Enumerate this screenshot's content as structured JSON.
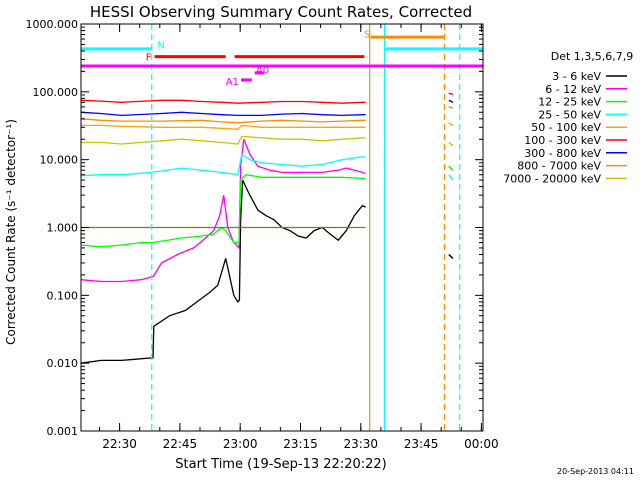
{
  "chart_data": {
    "type": "line",
    "title": "HESSI Observing Summary Count Rates, Corrected",
    "ylabel": "Corrected Count Rate (s⁻¹ detector⁻¹)",
    "xlabel": "Start Time (19-Sep-13 22:20:22)",
    "footer": "20-Sep-2013 04:11",
    "yscale": "log",
    "ylim": [
      0.001,
      1000
    ],
    "xlim": [
      0,
      100
    ],
    "x_unit": "minutes after 22:20:22",
    "y_ticks": [
      "0.001",
      "0.010",
      "0.100",
      "1.000",
      "10.000",
      "100.000",
      "1000.000"
    ],
    "x_ticks": [
      {
        "label": "22:30",
        "x": 9.6
      },
      {
        "label": "22:45",
        "x": 24.6
      },
      {
        "label": "23:00",
        "x": 39.6
      },
      {
        "label": "23:15",
        "x": 54.6
      },
      {
        "label": "23:30",
        "x": 69.6
      },
      {
        "label": "23:45",
        "x": 84.6
      },
      {
        "label": "00:00",
        "x": 99.6
      }
    ],
    "legend_title": "Det 1,3,5,6,7,9",
    "legend_position": "right",
    "series": [
      {
        "name": "3 - 6 keV",
        "color": "#000000",
        "x": [
          0,
          5,
          10,
          17.9,
          18.1,
          22,
          26,
          30,
          32,
          34,
          35,
          36,
          38,
          39,
          39.4,
          39.7,
          40.2,
          42,
          44,
          46,
          48,
          50,
          52,
          54,
          56,
          58,
          60,
          62,
          64,
          66,
          68,
          70,
          70.8
        ],
        "y": [
          0.01,
          0.011,
          0.011,
          0.012,
          0.035,
          0.05,
          0.06,
          0.09,
          0.11,
          0.14,
          0.22,
          0.35,
          0.1,
          0.08,
          0.085,
          1.2,
          5.0,
          3.0,
          1.8,
          1.5,
          1.3,
          1.0,
          0.9,
          0.75,
          0.7,
          0.9,
          1.0,
          0.8,
          0.65,
          0.9,
          1.5,
          2.1,
          2.0
        ]
      },
      {
        "name": "6 - 12 keV",
        "color": "#ff00ff",
        "x": [
          0,
          5,
          10,
          15,
          18,
          20,
          24,
          28,
          31,
          33,
          34.5,
          35.5,
          36.5,
          38,
          39.3,
          39.7,
          40.5,
          42,
          44,
          47,
          50,
          55,
          60,
          64,
          66,
          68,
          70,
          70.8
        ],
        "y": [
          0.17,
          0.16,
          0.16,
          0.17,
          0.19,
          0.3,
          0.4,
          0.5,
          0.7,
          0.9,
          1.5,
          3.0,
          1.0,
          0.6,
          0.5,
          8.0,
          20,
          12,
          8.0,
          7.0,
          6.5,
          6.5,
          6.5,
          7.0,
          7.5,
          7.0,
          6.5,
          6.2
        ]
      },
      {
        "name": "12 - 25 keV",
        "color": "#00ff00",
        "x": [
          0,
          5,
          10,
          15,
          18,
          25,
          30,
          33,
          35,
          36,
          38,
          39.3,
          39.7,
          41,
          45,
          50,
          55,
          60,
          65,
          70,
          70.8
        ],
        "y": [
          0.55,
          0.52,
          0.55,
          0.6,
          0.6,
          0.7,
          0.75,
          0.8,
          1.0,
          0.9,
          0.6,
          0.6,
          5.0,
          6.0,
          5.5,
          5.5,
          5.5,
          5.5,
          5.5,
          5.3,
          5.2
        ]
      },
      {
        "name": "25 - 50 keV",
        "color": "#00ffff",
        "x": [
          0,
          5,
          10,
          15,
          20,
          25,
          30,
          35,
          39,
          40,
          42,
          45,
          50,
          55,
          60,
          65,
          70,
          70.8
        ],
        "y": [
          5.8,
          6.0,
          6.0,
          6.3,
          6.8,
          7.5,
          7.0,
          6.5,
          6.0,
          12,
          10,
          9.0,
          8.5,
          8.0,
          8.5,
          10,
          11,
          11
        ]
      },
      {
        "name": "50 - 100 keV",
        "color": "#ffa500",
        "x": [
          0,
          5,
          10,
          20,
          30,
          35,
          39,
          40,
          45,
          50,
          55,
          60,
          65,
          70,
          70.8
        ],
        "y": [
          32,
          32,
          31,
          30,
          30,
          29,
          28,
          32,
          30,
          30,
          30,
          30,
          30,
          30,
          30
        ]
      },
      {
        "name": "100 - 300 keV",
        "color": "#ff0000",
        "x": [
          0,
          5,
          10,
          20,
          25,
          30,
          35,
          39,
          45,
          50,
          55,
          60,
          65,
          70,
          70.8
        ],
        "y": [
          75,
          73,
          70,
          75,
          75,
          72,
          70,
          68,
          70,
          72,
          72,
          70,
          68,
          70,
          70
        ]
      },
      {
        "name": "300 - 800 keV",
        "color": "#0000ff",
        "x": [
          0,
          5,
          10,
          20,
          25,
          30,
          35,
          39,
          45,
          50,
          55,
          60,
          65,
          70,
          70.8
        ],
        "y": [
          50,
          48,
          45,
          48,
          50,
          48,
          46,
          45,
          45,
          47,
          48,
          46,
          45,
          46,
          46
        ]
      },
      {
        "name": "800 - 7000 keV",
        "color": "#ff8c00",
        "x": [
          0,
          5,
          10,
          20,
          30,
          35,
          39,
          45,
          50,
          55,
          60,
          65,
          70,
          70.8
        ],
        "y": [
          40,
          38,
          37,
          37,
          38,
          36,
          35,
          37,
          38,
          37,
          36,
          37,
          38,
          38
        ]
      },
      {
        "name": "7000 - 20000 keV",
        "color": "#c8c800",
        "x": [
          0,
          5,
          10,
          15,
          20,
          25,
          30,
          35,
          39,
          40,
          45,
          50,
          55,
          60,
          65,
          70,
          70.8
        ],
        "y": [
          18,
          18,
          17,
          18,
          19,
          20,
          19,
          18,
          17,
          22,
          21,
          20,
          20,
          19,
          20,
          21,
          21
        ]
      },
      {
        "name": "",
        "color": "#808000",
        "x": [
          0,
          17.9,
          18.2,
          39.4,
          39.7,
          55,
          60,
          65,
          70,
          70.8
        ],
        "y": [
          1.0,
          1.0,
          1.0,
          1.0,
          1.0,
          1.0,
          1.0,
          1.0,
          1.0,
          1.0
        ]
      }
    ],
    "late_segment": {
      "x": [
        91.5,
        92.5
      ],
      "series": [
        {
          "color": "#ff0000",
          "y": [
            95,
            92
          ]
        },
        {
          "color": "#0000ff",
          "y": [
            75,
            70
          ]
        },
        {
          "color": "#ff8c00",
          "y": [
            60,
            58
          ]
        },
        {
          "color": "#ffa500",
          "y": [
            35,
            32
          ]
        },
        {
          "color": "#c8c800",
          "y": [
            18,
            16
          ]
        },
        {
          "color": "#00ff00",
          "y": [
            8,
            7
          ]
        },
        {
          "color": "#00ffff",
          "y": [
            6,
            5
          ]
        },
        {
          "color": "#000000",
          "y": [
            0.4,
            0.35
          ]
        }
      ]
    },
    "flag_bars": [
      {
        "label": "N",
        "color": "#00ffff",
        "y": 430,
        "x0": 0,
        "x1": 17.6
      },
      {
        "label": "N",
        "color": "#00ffff",
        "y": 430,
        "x0": 75.5,
        "x1": 100
      },
      {
        "label": "F",
        "color": "#ff0000",
        "y": 330,
        "x0": 18.3,
        "x1": 36.0
      },
      {
        "label": "F",
        "color": "#ff0000",
        "y": 330,
        "x0": 38.2,
        "x1": 70.5
      },
      {
        "label": "S",
        "color": "#ff8c00",
        "y": 640,
        "x0": 72.0,
        "x1": 90.5
      },
      {
        "label": "",
        "color": "#ff00ff",
        "y": 240,
        "x0": 0,
        "x1": 100
      },
      {
        "label": "A0",
        "color": "#ff00ff",
        "y": 190,
        "x0": 43.2,
        "x1": 45.5
      },
      {
        "label": "A1",
        "color": "#ff00ff",
        "y": 150,
        "x0": 39.8,
        "x1": 42.5
      }
    ],
    "flag_labels": [
      {
        "text": "N",
        "color": "#00ffff",
        "x": 19.0,
        "y": 500
      },
      {
        "text": "F",
        "color": "#ff0000",
        "y": 330,
        "x": 16.1
      },
      {
        "text": "S",
        "color": "#ff8c00",
        "x": 70.4,
        "y": 720
      },
      {
        "text": "A0",
        "color": "#ff00ff",
        "x": 43.5,
        "y": 215
      },
      {
        "text": "A1",
        "color": "#ff00ff",
        "x": 36.0,
        "y": 145
      }
    ],
    "vlines": [
      {
        "x": 17.6,
        "color": "#00ffff",
        "dash": true
      },
      {
        "x": 71.8,
        "color": "#ff8c00",
        "dash": false
      },
      {
        "x": 75.5,
        "color": "#00ffff",
        "dash": false
      },
      {
        "x": 90.4,
        "color": "#ff8c00",
        "dash": true
      },
      {
        "x": 94.2,
        "color": "#00ffff",
        "dash": true
      }
    ]
  }
}
